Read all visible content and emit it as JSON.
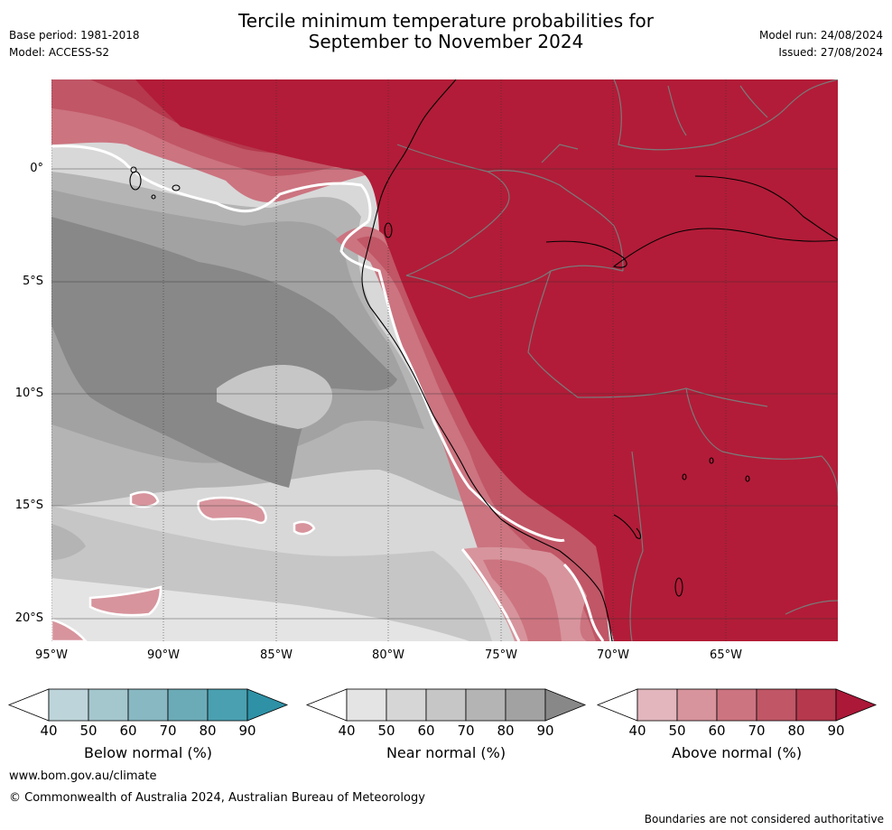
{
  "header": {
    "base_period": "Base period: 1981-2018",
    "model": "Model: ACCESS-S2",
    "title_line1": "Tercile minimum temperature probabilities for",
    "title_line2": "September to November 2024",
    "model_run": "Model run: 24/08/2024",
    "issued": "Issued: 27/08/2024"
  },
  "map": {
    "lat_labels": [
      "0°",
      "5°S",
      "10°S",
      "15°S",
      "20°S"
    ],
    "lon_labels": [
      "95°W",
      "90°W",
      "85°W",
      "80°W",
      "75°W",
      "70°W",
      "65°W"
    ],
    "colors": {
      "ocean_base": "#d8d8d8",
      "land_above_90": "#b21c38",
      "border": "#7a7a7a",
      "coast": "#000000"
    }
  },
  "colorbars": [
    {
      "label": "Below normal (%)",
      "ticks": [
        "40",
        "50",
        "60",
        "70",
        "80",
        "90"
      ],
      "colors": [
        "#ffffff",
        "#bdd4da",
        "#a4c6cd",
        "#88b8c2",
        "#6babb7",
        "#4aa0b0",
        "#2f91a6"
      ]
    },
    {
      "label": "Near normal (%)",
      "ticks": [
        "40",
        "50",
        "60",
        "70",
        "80",
        "90"
      ],
      "colors": [
        "#ffffff",
        "#e4e4e4",
        "#d6d6d6",
        "#c6c6c6",
        "#b4b4b4",
        "#a2a2a2",
        "#888888"
      ]
    },
    {
      "label": "Above normal (%)",
      "ticks": [
        "40",
        "50",
        "60",
        "70",
        "80",
        "90"
      ],
      "colors": [
        "#ffffff",
        "#e2b6bc",
        "#d7949c",
        "#cc7480",
        "#c05666",
        "#b5384c",
        "#ab1838"
      ]
    }
  ],
  "footer": {
    "website": "www.bom.gov.au/climate",
    "copyright": "© Commonwealth of Australia 2024, Australian Bureau of Meteorology",
    "disclaimer": "Boundaries are not considered authoritative"
  }
}
